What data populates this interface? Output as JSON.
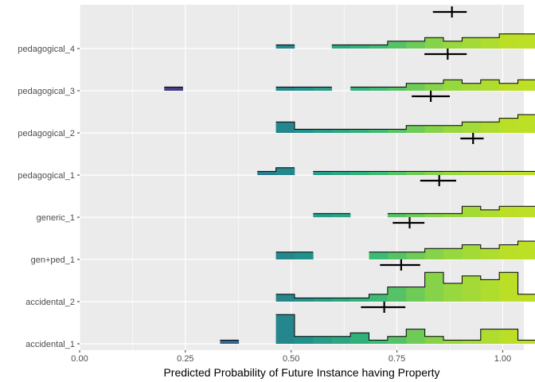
{
  "chart_data": {
    "type": "ridgeline-histogram",
    "xlabel": "Predicted Probability of Future Instance having Property",
    "ylabel": "",
    "xlim": [
      0.0,
      1.05
    ],
    "x_ticks": [
      0.0,
      0.25,
      0.5,
      0.75,
      1.0
    ],
    "x_tick_labels": [
      "0.00",
      "0.25",
      "0.50",
      "0.75",
      "1.00"
    ],
    "grid": true,
    "background": "#ebebeb",
    "gridline_color": "#ffffff",
    "bin_width": 0.044,
    "bin_start": 0.2,
    "categories": [
      "accidental_1",
      "accidental_2",
      "gen+ped_1",
      "generic_1",
      "pedagogical_1",
      "pedagogical_2",
      "pedagogical_3",
      "pedagogical_4"
    ],
    "series": [
      {
        "name": "accidental_1",
        "mean": 0.72,
        "ci": [
          0.665,
          0.77
        ],
        "counts": [
          0,
          0,
          0,
          1,
          0,
          0,
          8,
          2,
          2,
          2,
          3,
          1,
          2,
          4,
          2,
          1,
          1,
          4,
          4,
          1,
          1,
          4
        ]
      },
      {
        "name": "accidental_2",
        "mean": 0.76,
        "ci": [
          0.71,
          0.805
        ],
        "counts": [
          0,
          0,
          0,
          0,
          0,
          0,
          2,
          1,
          1,
          1,
          1,
          2,
          4,
          4,
          8,
          5,
          7,
          6,
          8,
          2,
          4,
          3
        ]
      },
      {
        "name": "gen+ped_1",
        "mean": 0.78,
        "ci": [
          0.74,
          0.815
        ],
        "counts": [
          0,
          0,
          0,
          0,
          0,
          0,
          2,
          2,
          0,
          0,
          0,
          2,
          2,
          2,
          3,
          3,
          4,
          3,
          4,
          5,
          6,
          8
        ]
      },
      {
        "name": "generic_1",
        "mean": 0.85,
        "ci": [
          0.805,
          0.89
        ],
        "counts": [
          0,
          0,
          0,
          0,
          0,
          0,
          0,
          0,
          1,
          1,
          0,
          0,
          1,
          1,
          1,
          1,
          3,
          2,
          3,
          3,
          7,
          9
        ]
      },
      {
        "name": "pedagogical_1",
        "mean": 0.93,
        "ci": [
          0.9,
          0.955
        ],
        "counts": [
          0,
          0,
          0,
          0,
          0,
          1,
          2,
          0,
          1,
          1,
          1,
          1,
          1,
          1,
          1,
          1,
          1,
          1,
          1,
          1,
          1,
          1
        ]
      },
      {
        "name": "pedagogical_2",
        "mean": 0.83,
        "ci": [
          0.785,
          0.875
        ],
        "counts": [
          0,
          0,
          0,
          0,
          0,
          0,
          3,
          1,
          1,
          1,
          1,
          1,
          1,
          2,
          2,
          2,
          3,
          3,
          4,
          5,
          4,
          7
        ]
      },
      {
        "name": "pedagogical_3",
        "mean": 0.87,
        "ci": [
          0.815,
          0.915
        ],
        "counts": [
          1,
          0,
          0,
          0,
          0,
          0,
          1,
          1,
          1,
          0,
          1,
          1,
          1,
          2,
          2,
          3,
          2,
          3,
          2,
          3,
          5,
          7
        ]
      },
      {
        "name": "pedagogical_4",
        "mean": 0.88,
        "ci": [
          0.835,
          0.915
        ],
        "counts": [
          0,
          0,
          0,
          0,
          0,
          0,
          1,
          0,
          0,
          1,
          1,
          1,
          2,
          2,
          3,
          2,
          3,
          3,
          4,
          4,
          5,
          8
        ]
      }
    ],
    "fill_scale": [
      "#443983",
      "#31688e",
      "#21918c",
      "#35b779",
      "#90d743",
      "#bddf26"
    ]
  }
}
